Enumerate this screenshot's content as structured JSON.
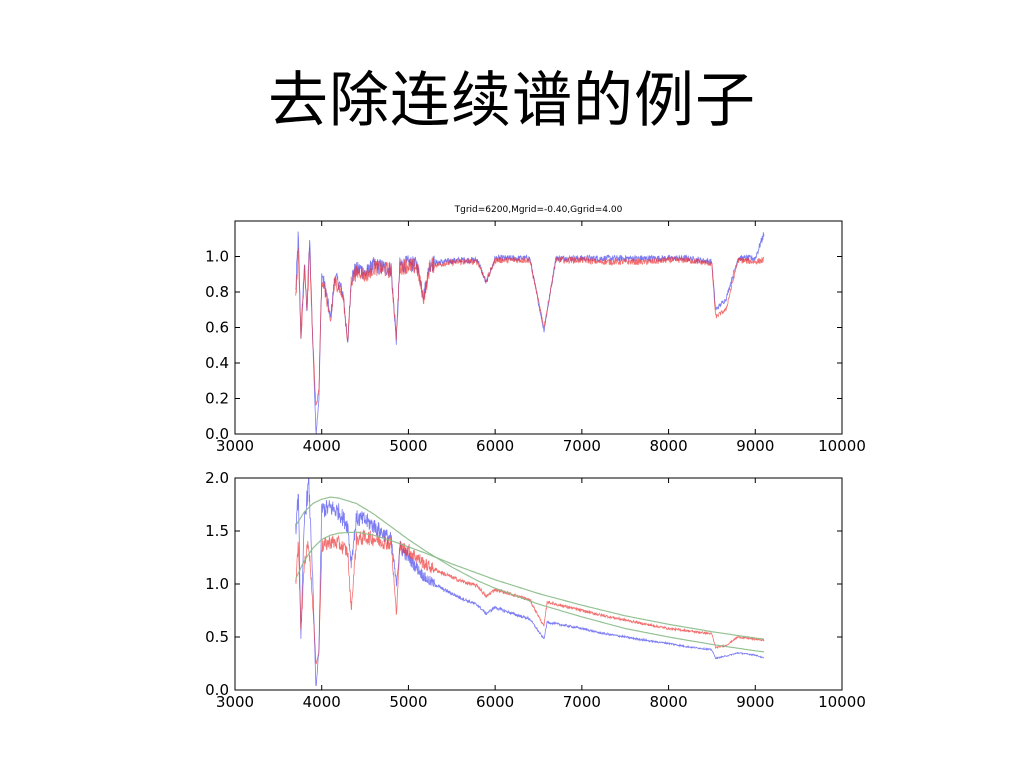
{
  "slide": {
    "title": "去除连续谱的例子"
  },
  "colors": {
    "blue_series": "#4444ee",
    "red_series": "#ee3333",
    "continuum": "#88bb88",
    "axes": "#000000"
  },
  "chart_data": [
    {
      "type": "line",
      "title": "Tgrid=6200,Mgrid=-0.40,Ggrid=4.00",
      "xlabel": "",
      "ylabel": "",
      "xlim": [
        3000,
        10000
      ],
      "ylim": [
        0.0,
        1.2
      ],
      "xticks": [
        3000,
        4000,
        5000,
        6000,
        7000,
        8000,
        9000,
        10000
      ],
      "yticks": [
        0.0,
        0.2,
        0.4,
        0.6,
        0.8,
        1.0
      ],
      "ytick_labels": [
        "0.0",
        "0.2",
        "0.4",
        "0.6",
        "0.8",
        "1.0"
      ],
      "grid": false,
      "series": [
        {
          "color": "blue",
          "x_range": [
            3700,
            9100
          ],
          "x": [
            3700,
            3730,
            3760,
            3800,
            3830,
            3860,
            3890,
            3934,
            3968,
            4000,
            4050,
            4101,
            4150,
            4200,
            4250,
            4300,
            4340,
            4380,
            4450,
            4500,
            4600,
            4700,
            4800,
            4861,
            4900,
            5000,
            5100,
            5175,
            5250,
            5400,
            5600,
            5800,
            5895,
            6000,
            6200,
            6400,
            6563,
            6700,
            7000,
            7200,
            7500,
            7800,
            8000,
            8200,
            8498,
            8542,
            8662,
            8800,
            9000,
            9100
          ],
          "y": [
            0.8,
            1.12,
            0.55,
            0.95,
            0.7,
            1.1,
            0.62,
            0.0,
            0.2,
            0.9,
            0.8,
            0.65,
            0.88,
            0.85,
            0.78,
            0.5,
            0.88,
            0.92,
            0.93,
            0.9,
            0.95,
            0.94,
            0.93,
            0.52,
            0.95,
            0.96,
            0.95,
            0.78,
            0.96,
            0.97,
            0.98,
            0.98,
            0.85,
            0.99,
            0.99,
            0.99,
            0.58,
            0.99,
            0.99,
            0.99,
            0.99,
            0.99,
            0.99,
            0.99,
            0.97,
            0.7,
            0.76,
            0.99,
            0.99,
            1.13
          ]
        },
        {
          "color": "red",
          "x_range": [
            3700,
            9100
          ],
          "x": [
            3700,
            3730,
            3760,
            3800,
            3830,
            3860,
            3890,
            3934,
            3968,
            4000,
            4050,
            4101,
            4150,
            4200,
            4250,
            4300,
            4340,
            4380,
            4450,
            4500,
            4600,
            4700,
            4800,
            4861,
            4900,
            5000,
            5100,
            5175,
            5250,
            5400,
            5600,
            5800,
            5895,
            6000,
            6200,
            6400,
            6563,
            6700,
            7000,
            7200,
            7500,
            7800,
            8000,
            8200,
            8498,
            8542,
            8662,
            8800,
            9000,
            9100
          ],
          "y": [
            0.75,
            1.05,
            0.52,
            0.92,
            0.68,
            1.04,
            0.6,
            0.15,
            0.25,
            0.88,
            0.78,
            0.62,
            0.86,
            0.83,
            0.76,
            0.52,
            0.86,
            0.9,
            0.92,
            0.89,
            0.94,
            0.93,
            0.92,
            0.55,
            0.94,
            0.95,
            0.94,
            0.76,
            0.95,
            0.96,
            0.97,
            0.97,
            0.86,
            0.98,
            0.98,
            0.98,
            0.6,
            0.98,
            0.98,
            0.97,
            0.97,
            0.97,
            0.98,
            0.98,
            0.96,
            0.66,
            0.7,
            0.98,
            0.97,
            0.98
          ]
        }
      ]
    },
    {
      "type": "line",
      "title": "",
      "xlabel": "",
      "ylabel": "",
      "xlim": [
        3000,
        10000
      ],
      "ylim": [
        0.0,
        2.0
      ],
      "xticks": [
        3000,
        4000,
        5000,
        6000,
        7000,
        8000,
        9000,
        10000
      ],
      "yticks": [
        0.0,
        0.5,
        1.0,
        1.5,
        2.0
      ],
      "ytick_labels": [
        "0.0",
        "0.5",
        "1.0",
        "1.5",
        "2.0"
      ],
      "grid": false,
      "series": [
        {
          "color": "blue",
          "kind": "spectrum",
          "x": [
            3700,
            3730,
            3760,
            3800,
            3850,
            3890,
            3934,
            3968,
            4000,
            4100,
            4200,
            4300,
            4340,
            4400,
            4500,
            4600,
            4700,
            4800,
            4861,
            4900,
            5000,
            5100,
            5200,
            5400,
            5600,
            5800,
            5895,
            6000,
            6200,
            6400,
            6563,
            6600,
            6800,
            7000,
            7200,
            7500,
            7800,
            8000,
            8200,
            8498,
            8542,
            8662,
            8800,
            9000,
            9100
          ],
          "y": [
            1.5,
            1.85,
            0.5,
            1.6,
            1.95,
            1.2,
            0.0,
            0.4,
            1.7,
            1.72,
            1.68,
            1.55,
            1.2,
            1.62,
            1.6,
            1.55,
            1.48,
            1.42,
            1.0,
            1.35,
            1.25,
            1.15,
            1.05,
            0.95,
            0.87,
            0.8,
            0.72,
            0.78,
            0.72,
            0.67,
            0.48,
            0.64,
            0.61,
            0.58,
            0.54,
            0.5,
            0.46,
            0.44,
            0.41,
            0.38,
            0.3,
            0.32,
            0.35,
            0.33,
            0.3
          ]
        },
        {
          "color": "red",
          "kind": "spectrum",
          "x": [
            3700,
            3730,
            3760,
            3800,
            3850,
            3890,
            3934,
            3968,
            4000,
            4100,
            4200,
            4300,
            4340,
            4400,
            4500,
            4600,
            4700,
            4800,
            4861,
            4900,
            5000,
            5100,
            5200,
            5400,
            5600,
            5800,
            5895,
            6000,
            6200,
            6400,
            6563,
            6600,
            6800,
            7000,
            7200,
            7500,
            7800,
            8000,
            8200,
            8498,
            8542,
            8662,
            8800,
            9000,
            9100
          ],
          "y": [
            1.0,
            1.4,
            0.55,
            1.2,
            1.4,
            0.9,
            0.25,
            0.35,
            1.35,
            1.4,
            1.38,
            1.3,
            0.75,
            1.42,
            1.44,
            1.43,
            1.4,
            1.38,
            0.72,
            1.35,
            1.32,
            1.25,
            1.18,
            1.1,
            1.03,
            0.98,
            0.88,
            0.95,
            0.9,
            0.85,
            0.6,
            0.83,
            0.79,
            0.75,
            0.71,
            0.66,
            0.61,
            0.58,
            0.56,
            0.53,
            0.4,
            0.42,
            0.5,
            0.48,
            0.47
          ]
        },
        {
          "color": "green",
          "kind": "continuum",
          "x": [
            3700,
            3800,
            3900,
            4000,
            4100,
            4200,
            4400,
            4600,
            4800,
            5000,
            5200,
            5500,
            5800,
            6000,
            6500,
            7000,
            7500,
            8000,
            8500,
            9000,
            9100
          ],
          "y": [
            1.55,
            1.68,
            1.76,
            1.8,
            1.82,
            1.81,
            1.76,
            1.66,
            1.54,
            1.42,
            1.31,
            1.16,
            1.03,
            0.96,
            0.81,
            0.69,
            0.58,
            0.5,
            0.43,
            0.37,
            0.36
          ]
        },
        {
          "color": "green",
          "kind": "continuum",
          "x": [
            3700,
            3800,
            3900,
            4000,
            4100,
            4200,
            4400,
            4600,
            4800,
            5000,
            5200,
            5500,
            5800,
            6000,
            6500,
            7000,
            7500,
            8000,
            8500,
            9000,
            9100
          ],
          "y": [
            1.05,
            1.22,
            1.34,
            1.42,
            1.46,
            1.48,
            1.49,
            1.46,
            1.41,
            1.35,
            1.29,
            1.19,
            1.1,
            1.04,
            0.91,
            0.8,
            0.7,
            0.62,
            0.55,
            0.49,
            0.48
          ]
        }
      ]
    }
  ]
}
